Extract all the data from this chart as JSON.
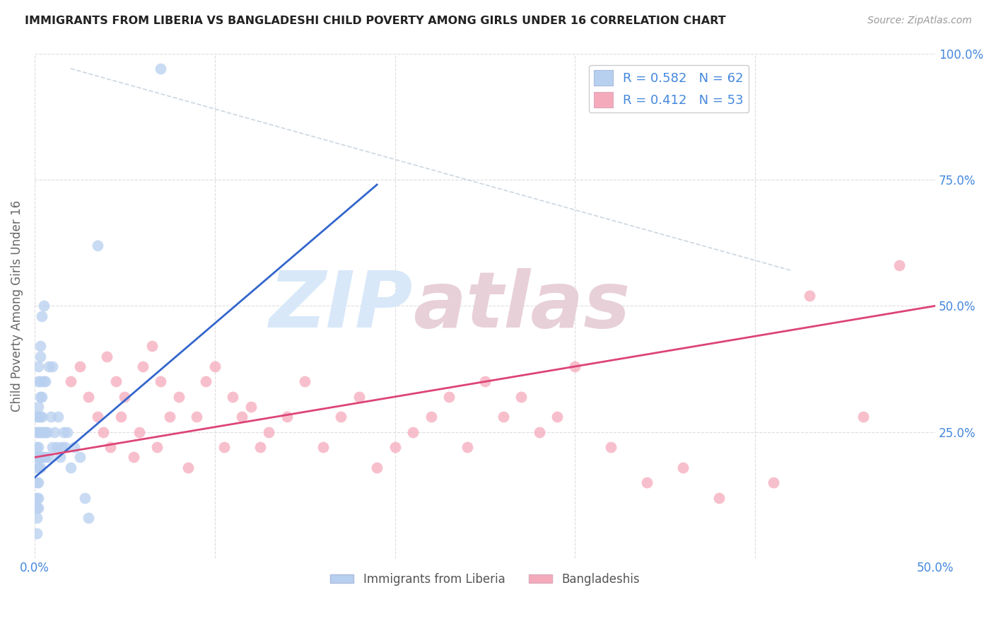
{
  "title": "IMMIGRANTS FROM LIBERIA VS BANGLADESHI CHILD POVERTY AMONG GIRLS UNDER 16 CORRELATION CHART",
  "source": "Source: ZipAtlas.com",
  "ylabel": "Child Poverty Among Girls Under 16",
  "xlim": [
    0,
    0.5
  ],
  "ylim": [
    0,
    1.0
  ],
  "legend_entries": [
    {
      "label": "Immigrants from Liberia",
      "color": "#b8d0f0",
      "R": 0.582,
      "N": 62
    },
    {
      "label": "Bangladeshis",
      "color": "#f5aabb",
      "R": 0.412,
      "N": 53
    }
  ],
  "scatter_blue": {
    "x": [
      0.001,
      0.001,
      0.001,
      0.001,
      0.001,
      0.001,
      0.001,
      0.001,
      0.001,
      0.001,
      0.002,
      0.002,
      0.002,
      0.002,
      0.002,
      0.002,
      0.002,
      0.002,
      0.002,
      0.002,
      0.002,
      0.003,
      0.003,
      0.003,
      0.003,
      0.003,
      0.003,
      0.003,
      0.003,
      0.004,
      0.004,
      0.004,
      0.004,
      0.004,
      0.005,
      0.005,
      0.005,
      0.005,
      0.006,
      0.006,
      0.006,
      0.007,
      0.008,
      0.008,
      0.009,
      0.01,
      0.01,
      0.011,
      0.012,
      0.013,
      0.014,
      0.015,
      0.016,
      0.017,
      0.018,
      0.02,
      0.022,
      0.025,
      0.028,
      0.03,
      0.035,
      0.07
    ],
    "y": [
      0.2,
      0.22,
      0.25,
      0.28,
      0.18,
      0.15,
      0.1,
      0.08,
      0.05,
      0.12,
      0.2,
      0.22,
      0.25,
      0.28,
      0.18,
      0.3,
      0.35,
      0.38,
      0.15,
      0.12,
      0.1,
      0.2,
      0.25,
      0.28,
      0.32,
      0.35,
      0.4,
      0.42,
      0.18,
      0.2,
      0.25,
      0.28,
      0.32,
      0.48,
      0.2,
      0.25,
      0.35,
      0.5,
      0.2,
      0.25,
      0.35,
      0.25,
      0.2,
      0.38,
      0.28,
      0.22,
      0.38,
      0.25,
      0.22,
      0.28,
      0.2,
      0.22,
      0.25,
      0.22,
      0.25,
      0.18,
      0.22,
      0.2,
      0.12,
      0.08,
      0.62,
      0.97
    ]
  },
  "scatter_pink": {
    "x": [
      0.02,
      0.025,
      0.03,
      0.035,
      0.038,
      0.04,
      0.042,
      0.045,
      0.048,
      0.05,
      0.055,
      0.058,
      0.06,
      0.065,
      0.068,
      0.07,
      0.075,
      0.08,
      0.085,
      0.09,
      0.095,
      0.1,
      0.105,
      0.11,
      0.115,
      0.12,
      0.125,
      0.13,
      0.14,
      0.15,
      0.16,
      0.17,
      0.18,
      0.19,
      0.2,
      0.21,
      0.22,
      0.23,
      0.24,
      0.25,
      0.26,
      0.27,
      0.28,
      0.29,
      0.3,
      0.32,
      0.34,
      0.36,
      0.38,
      0.41,
      0.43,
      0.46,
      0.48
    ],
    "y": [
      0.35,
      0.38,
      0.32,
      0.28,
      0.25,
      0.4,
      0.22,
      0.35,
      0.28,
      0.32,
      0.2,
      0.25,
      0.38,
      0.42,
      0.22,
      0.35,
      0.28,
      0.32,
      0.18,
      0.28,
      0.35,
      0.38,
      0.22,
      0.32,
      0.28,
      0.3,
      0.22,
      0.25,
      0.28,
      0.35,
      0.22,
      0.28,
      0.32,
      0.18,
      0.22,
      0.25,
      0.28,
      0.32,
      0.22,
      0.35,
      0.28,
      0.32,
      0.25,
      0.28,
      0.38,
      0.22,
      0.15,
      0.18,
      0.12,
      0.15,
      0.52,
      0.28,
      0.58
    ]
  },
  "blue_line": {
    "x0": 0.0,
    "y0": 0.16,
    "x1": 0.19,
    "y1": 0.74
  },
  "pink_line": {
    "x0": 0.0,
    "y0": 0.2,
    "x1": 0.5,
    "y1": 0.5
  },
  "diag_line": {
    "x0": 0.02,
    "y0": 0.97,
    "x1": 0.42,
    "y1": 0.57
  },
  "watermark_zip": "ZIP",
  "watermark_atlas": "atlas",
  "watermark_color": "#d8e8f8",
  "background_color": "#ffffff",
  "blue_line_color": "#3366cc",
  "pink_line_color": "#dd4477",
  "blue_scatter_color": "#b8d0f0",
  "pink_scatter_color": "#f5aabb",
  "title_color": "#222222",
  "source_color": "#999999",
  "tick_label_color": "#4488dd",
  "grid_color": "#dddddd"
}
